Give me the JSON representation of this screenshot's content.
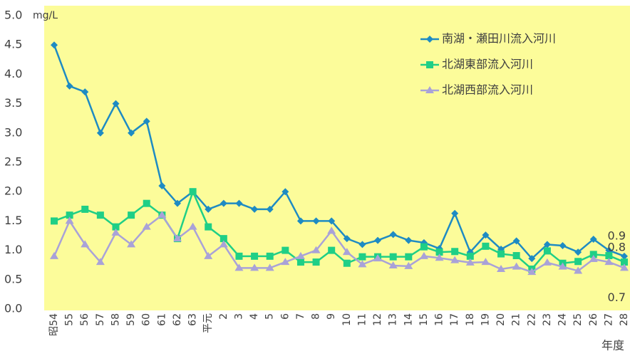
{
  "chart_data": {
    "type": "line",
    "y_unit": "mg/L",
    "x_label": "年度",
    "categories": [
      "昭54",
      "55",
      "56",
      "57",
      "58",
      "59",
      "60",
      "61",
      "62",
      "63",
      "平元",
      "2",
      "3",
      "4",
      "5",
      "6",
      "7",
      "8",
      "9",
      "10",
      "11",
      "12",
      "13",
      "14",
      "15",
      "16",
      "17",
      "18",
      "19",
      "20",
      "21",
      "22",
      "23",
      "24",
      "25",
      "26",
      "27",
      "28"
    ],
    "series": [
      {
        "name": "南湖・瀬田川流入河川",
        "color": "#1e8bc3",
        "marker": "diamond",
        "values": [
          4.5,
          3.8,
          3.7,
          3.0,
          3.5,
          3.0,
          3.2,
          2.1,
          1.8,
          2.0,
          1.7,
          1.8,
          1.8,
          1.7,
          1.7,
          2.0,
          1.5,
          1.5,
          1.5,
          1.2,
          1.1,
          1.17,
          1.27,
          1.17,
          1.13,
          1.03,
          1.63,
          0.97,
          1.26,
          1.02,
          1.16,
          0.86,
          1.1,
          1.08,
          0.97,
          1.19,
          1.0,
          0.9
        ]
      },
      {
        "name": "北湖東部流入河川",
        "color": "#1fcf86",
        "marker": "square",
        "values": [
          1.5,
          1.6,
          1.7,
          1.6,
          1.4,
          1.6,
          1.8,
          1.6,
          1.2,
          2.0,
          1.4,
          1.2,
          0.9,
          0.9,
          0.9,
          1.0,
          0.8,
          0.8,
          1.0,
          0.78,
          0.89,
          0.89,
          0.89,
          0.89,
          1.06,
          0.97,
          0.98,
          0.9,
          1.07,
          0.94,
          0.91,
          0.68,
          0.99,
          0.78,
          0.81,
          0.93,
          0.91,
          0.8
        ]
      },
      {
        "name": "北湖西部流入河川",
        "color": "#a9a2d8",
        "marker": "triangle",
        "values": [
          0.9,
          1.5,
          1.1,
          0.8,
          1.3,
          1.1,
          1.4,
          1.6,
          1.2,
          1.4,
          0.9,
          1.1,
          0.7,
          0.7,
          0.7,
          0.8,
          0.9,
          1.0,
          1.33,
          0.97,
          0.76,
          0.86,
          0.74,
          0.73,
          0.9,
          0.87,
          0.83,
          0.79,
          0.8,
          0.68,
          0.72,
          0.63,
          0.79,
          0.72,
          0.65,
          0.85,
          0.8,
          0.7
        ]
      }
    ],
    "ylim": [
      0,
      5
    ],
    "yticks": [
      {
        "value": 0,
        "label": "0.0"
      },
      0.5,
      {
        "value": 1,
        "label": "1.0"
      },
      1.5,
      {
        "value": 2,
        "label": "2.0"
      },
      2.5,
      {
        "value": 3,
        "label": "3.0"
      },
      3.5,
      {
        "value": 4,
        "label": "4.0"
      },
      4.5,
      {
        "value": 5,
        "label": "5.0"
      }
    ],
    "background": "#fcfc9a"
  }
}
